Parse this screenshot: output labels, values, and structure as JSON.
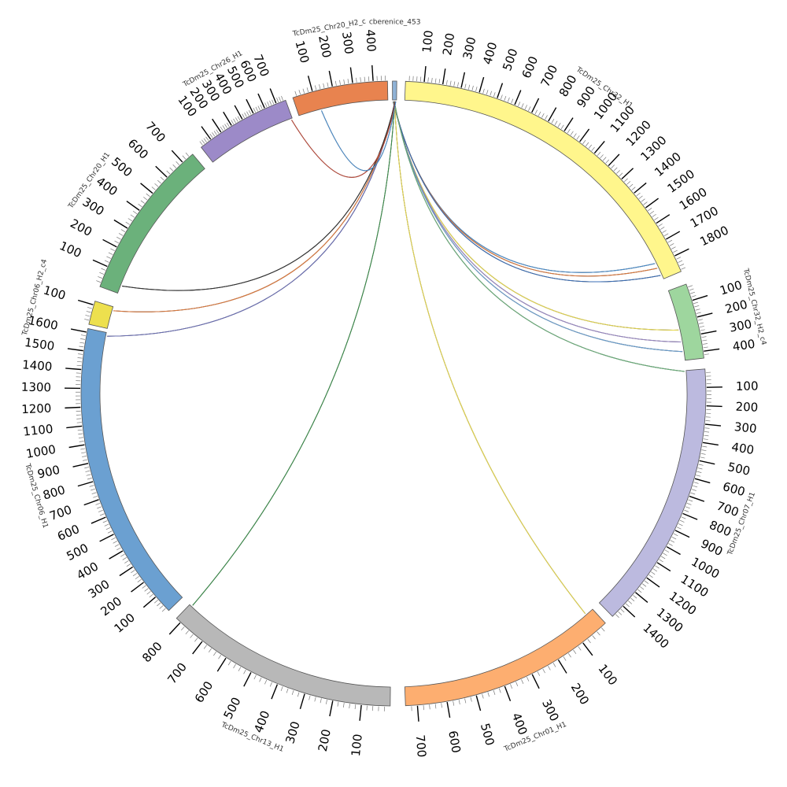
{
  "chart_data": {
    "type": "chord",
    "segments": [
      {
        "name": "cberenice_453",
        "length": 8,
        "color": "#8fb2d6",
        "ticks": []
      },
      {
        "name": "TcDm25_Chr32_H1",
        "length": 1890,
        "color": "#fff68c",
        "ticks": [
          "100",
          "200",
          "300",
          "400",
          "500",
          "600",
          "700",
          "800",
          "900",
          "1000",
          "1100",
          "1200",
          "1300",
          "1400",
          "1500",
          "1600",
          "1700",
          "1800"
        ]
      },
      {
        "name": "TcDm25_Chr32_H2_c4",
        "length": 440,
        "color": "#9ed69e",
        "ticks": [
          "100",
          "200",
          "300",
          "400"
        ]
      },
      {
        "name": "TcDm25_Chr07_H1",
        "length": 1480,
        "color": "#bcbadf",
        "ticks": [
          "100",
          "200",
          "300",
          "400",
          "500",
          "600",
          "700",
          "800",
          "900",
          "1000",
          "1100",
          "1200",
          "1300",
          "1400"
        ]
      },
      {
        "name": "TcDm25_Chr01_H1",
        "length": 740,
        "color": "#fdae70",
        "ticks": [
          "100",
          "200",
          "300",
          "400",
          "500",
          "600",
          "700"
        ]
      },
      {
        "name": "TcDm25_Chr13_H1",
        "length": 820,
        "color": "#b8b8b8",
        "ticks": [
          "100",
          "200",
          "300",
          "400",
          "500",
          "600",
          "700",
          "800"
        ]
      },
      {
        "name": "TcDm25_Chr06_H1",
        "length": 1620,
        "color": "#6ba0d1",
        "ticks": [
          "100",
          "200",
          "300",
          "400",
          "500",
          "600",
          "700",
          "800",
          "900",
          "1000",
          "1100",
          "1200",
          "1300",
          "1400",
          "1500",
          "1600"
        ]
      },
      {
        "name": "TcDm25_Chr06_H2_c4",
        "length": 120,
        "color": "#ede04e",
        "ticks": [
          "100"
        ]
      },
      {
        "name": "TcDm25_Chr20_H1",
        "length": 760,
        "color": "#6bb17b",
        "ticks": [
          "100",
          "200",
          "300",
          "400",
          "500",
          "600",
          "700"
        ]
      },
      {
        "name": "TcDm25_Chr26_H1",
        "length": 780,
        "color": "#9c8ac8",
        "ticks": [
          "100",
          "200",
          "300",
          "400",
          "500",
          "600",
          "700"
        ]
      },
      {
        "name": "TcDm25_Chr20_H2_c",
        "length": 470,
        "color": "#e8834f",
        "ticks": [
          "100",
          "200",
          "300",
          "400"
        ]
      }
    ],
    "links": [
      {
        "from": "cberenice_453",
        "to": "TcDm25_Chr32_H1",
        "to_pos": 1790,
        "color": "#4a8fcf"
      },
      {
        "from": "cberenice_453",
        "to": "TcDm25_Chr32_H1",
        "to_pos": 1820,
        "color": "#e07a3c"
      },
      {
        "from": "cberenice_453",
        "to": "TcDm25_Chr32_H1",
        "to_pos": 1865,
        "color": "#3b6fb8"
      },
      {
        "from": "cberenice_453",
        "to": "TcDm25_Chr32_H2_c4",
        "to_pos": 250,
        "color": "#e8d94a"
      },
      {
        "from": "cberenice_453",
        "to": "TcDm25_Chr32_H2_c4",
        "to_pos": 325,
        "color": "#9c8ac8"
      },
      {
        "from": "cberenice_453",
        "to": "TcDm25_Chr32_H2_c4",
        "to_pos": 385,
        "color": "#6ba0d1"
      },
      {
        "from": "cberenice_453",
        "to": "TcDm25_Chr07_H1",
        "to_pos": 5,
        "color": "#6bb17b"
      },
      {
        "from": "cberenice_453",
        "to": "TcDm25_Chr01_H1",
        "to_pos": 30,
        "color": "#e8d94a"
      },
      {
        "from": "cberenice_453",
        "to": "TcDm25_Chr13_H1",
        "to_pos": 810,
        "color": "#3a8f4a"
      },
      {
        "from": "cberenice_453",
        "to": "TcDm25_Chr06_H1",
        "to_pos": 1600,
        "color": "#6b6fb8"
      },
      {
        "from": "cberenice_453",
        "to": "TcDm25_Chr06_H2_c4",
        "to_pos": 100,
        "color": "#e07a3c"
      },
      {
        "from": "cberenice_453",
        "to": "TcDm25_Chr20_H1",
        "to_pos": 40,
        "color": "#333333"
      },
      {
        "from": "cberenice_453",
        "to": "TcDm25_Chr26_H1",
        "to_pos": 770,
        "color": "#c04a3a"
      },
      {
        "from": "cberenice_453",
        "to": "TcDm25_Chr20_H2_c",
        "to_pos": 120,
        "color": "#4a8fcf"
      }
    ]
  }
}
